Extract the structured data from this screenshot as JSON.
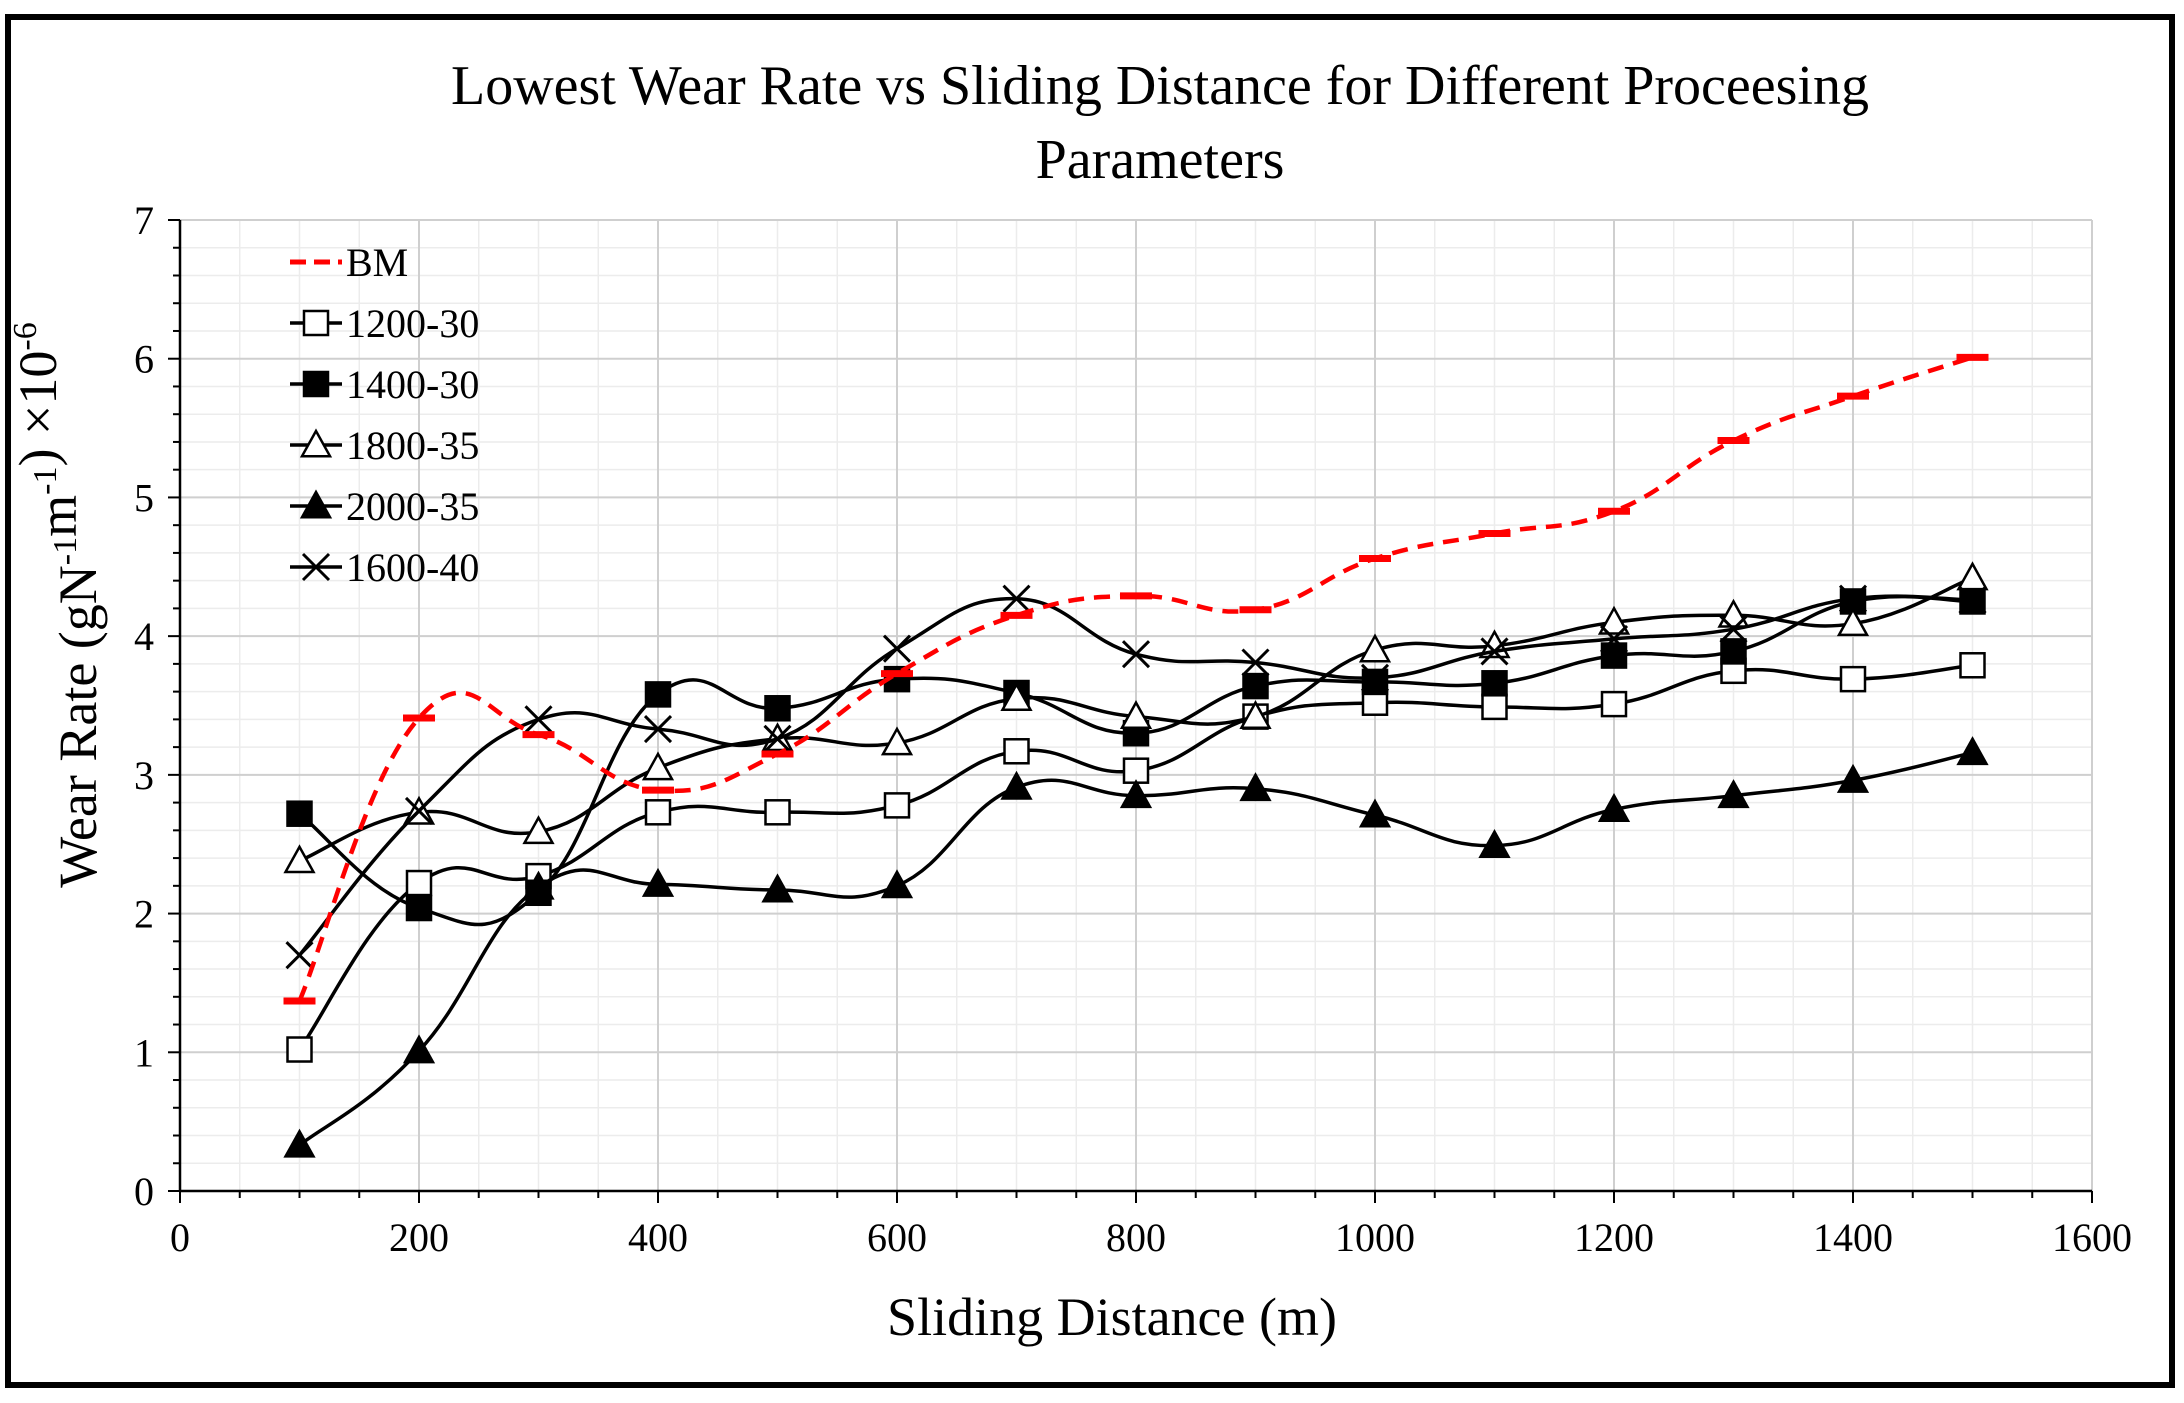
{
  "chart_data": {
    "type": "line",
    "title_lines": [
      "Lowest Wear Rate vs Sliding Distance for Different Proceesing",
      "Parameters"
    ],
    "xlabel": "Sliding Distance (m)",
    "ylabel": {
      "parts": [
        {
          "text": "Wear Rate (gN",
          "shift": "normal"
        },
        {
          "text": "-1",
          "shift": "super"
        },
        {
          "text": "m",
          "shift": "normal"
        },
        {
          "text": "-1",
          "shift": "super"
        },
        {
          "text": ") ×10",
          "shift": "normal"
        },
        {
          "text": "-6",
          "shift": "super"
        }
      ]
    },
    "xlim": [
      0,
      1600
    ],
    "ylim": [
      0,
      7
    ],
    "x_ticks": [
      "0",
      "200",
      "400",
      "600",
      "800",
      "1000",
      "1200",
      "1400",
      "1600"
    ],
    "y_ticks": [
      "0",
      "1",
      "2",
      "3",
      "4",
      "5",
      "6",
      "7"
    ],
    "grid": true,
    "legend_position": "top-left",
    "x": [
      100,
      200,
      300,
      400,
      500,
      600,
      700,
      800,
      900,
      1000,
      1100,
      1200,
      1300,
      1400,
      1500
    ],
    "series": [
      {
        "name": "BM",
        "marker": "dash",
        "color": "#ff0000",
        "line": "dashed",
        "values": [
          1.37,
          3.41,
          3.29,
          2.89,
          3.15,
          3.73,
          4.15,
          4.29,
          4.19,
          4.56,
          4.74,
          4.9,
          5.41,
          5.73,
          6.01
        ]
      },
      {
        "name": "1200-30",
        "marker": "square-open",
        "color": "#000000",
        "line": "solid",
        "values": [
          1.02,
          2.22,
          2.27,
          2.73,
          2.73,
          2.78,
          3.17,
          3.03,
          3.42,
          3.52,
          3.49,
          3.51,
          3.75,
          3.69,
          3.79
        ]
      },
      {
        "name": "1400-30",
        "marker": "square-filled",
        "color": "#000000",
        "line": "solid",
        "values": [
          2.72,
          2.04,
          2.15,
          3.58,
          3.48,
          3.69,
          3.59,
          3.3,
          3.64,
          3.67,
          3.66,
          3.86,
          3.89,
          4.25,
          4.25
        ]
      },
      {
        "name": "1800-35",
        "marker": "triangle-open",
        "color": "#000000",
        "line": "solid",
        "values": [
          2.38,
          2.73,
          2.59,
          3.05,
          3.26,
          3.23,
          3.55,
          3.42,
          3.42,
          3.9,
          3.93,
          4.1,
          4.15,
          4.09,
          4.42
        ]
      },
      {
        "name": "2000-35",
        "marker": "triangle-filled",
        "color": "#000000",
        "line": "solid",
        "values": [
          0.33,
          1.01,
          2.19,
          2.21,
          2.17,
          2.2,
          2.91,
          2.85,
          2.9,
          2.71,
          2.49,
          2.75,
          2.85,
          2.96,
          3.16
        ]
      },
      {
        "name": "1600-40",
        "marker": "x",
        "color": "#000000",
        "line": "solid",
        "values": [
          1.7,
          2.74,
          3.4,
          3.33,
          3.26,
          3.91,
          4.27,
          3.87,
          3.81,
          3.7,
          3.89,
          3.98,
          4.05,
          4.27,
          4.26
        ]
      }
    ]
  }
}
